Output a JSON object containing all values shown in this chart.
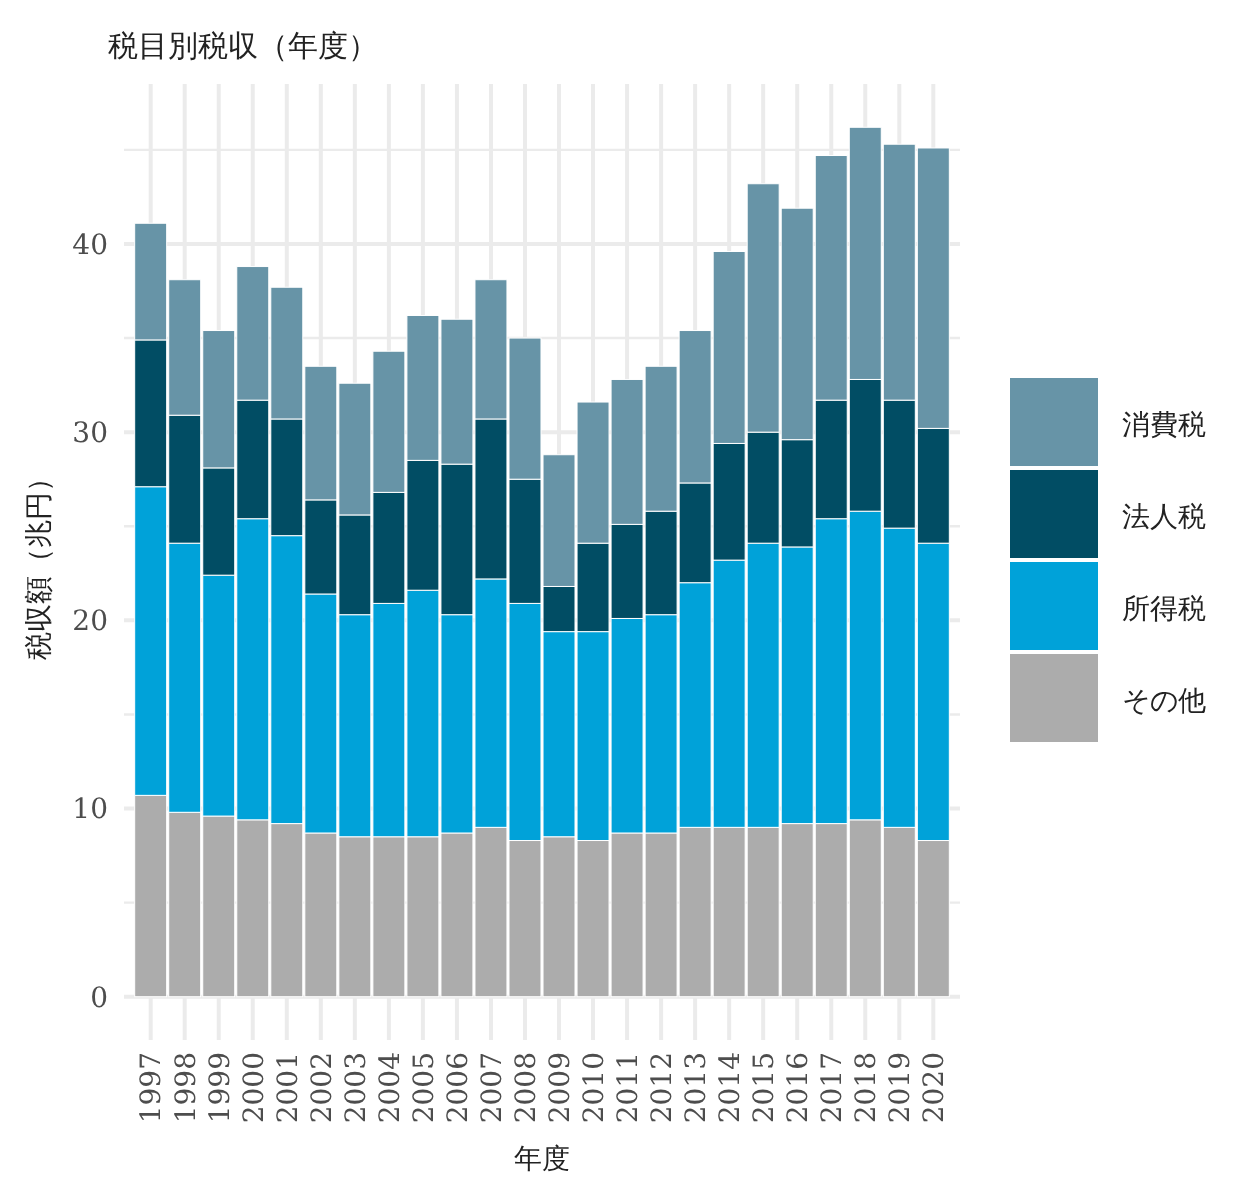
{
  "chart_data": {
    "type": "bar",
    "stacked": true,
    "title": "税目別税収（年度）",
    "xlabel": "年度",
    "ylabel": "税収額（兆円）",
    "categories": [
      "1997",
      "1998",
      "1999",
      "2000",
      "2001",
      "2002",
      "2003",
      "2004",
      "2005",
      "2006",
      "2007",
      "2008",
      "2009",
      "2010",
      "2011",
      "2012",
      "2013",
      "2014",
      "2015",
      "2016",
      "2017",
      "2018",
      "2019",
      "2020"
    ],
    "series": [
      {
        "name": "その他",
        "color": "#acacac",
        "values": [
          10.7,
          9.8,
          9.6,
          9.4,
          9.2,
          8.7,
          8.5,
          8.5,
          8.5,
          8.7,
          9.0,
          8.3,
          8.5,
          8.3,
          8.7,
          8.7,
          9.0,
          9.0,
          9.0,
          9.2,
          9.2,
          9.4,
          9.0,
          8.3
        ]
      },
      {
        "name": "所得税",
        "color": "#00a2d9",
        "values": [
          16.4,
          14.3,
          12.8,
          16.0,
          15.3,
          12.7,
          11.8,
          12.4,
          13.1,
          11.6,
          13.2,
          12.6,
          10.9,
          11.1,
          11.4,
          11.6,
          13.0,
          14.2,
          15.1,
          14.7,
          16.2,
          16.4,
          15.9,
          15.8
        ]
      },
      {
        "name": "法人税",
        "color": "#014d64",
        "values": [
          7.8,
          6.8,
          5.7,
          6.3,
          6.2,
          5.0,
          5.3,
          5.9,
          6.9,
          8.0,
          8.5,
          6.6,
          2.4,
          4.7,
          5.0,
          5.5,
          5.3,
          6.2,
          5.9,
          5.7,
          6.3,
          7.0,
          6.8,
          6.1
        ]
      },
      {
        "name": "消費税",
        "color": "#6794a7",
        "values": [
          6.2,
          7.2,
          7.3,
          7.1,
          7.0,
          7.1,
          7.0,
          7.5,
          7.7,
          7.7,
          7.4,
          7.5,
          7.0,
          7.5,
          7.7,
          7.7,
          8.1,
          10.2,
          13.2,
          12.3,
          13.0,
          13.4,
          13.6,
          14.9
        ]
      }
    ],
    "ylim": [
      -2.3,
      48.5
    ],
    "yticks": [
      0,
      {
        "value": 5,
        "label": null
      },
      10,
      {
        "value": 15,
        "label": null
      },
      20,
      {
        "value": 25,
        "label": null
      },
      30,
      {
        "value": 35,
        "label": null
      },
      40,
      {
        "value": 45,
        "label": null
      }
    ],
    "grid": true,
    "legend": "right"
  }
}
